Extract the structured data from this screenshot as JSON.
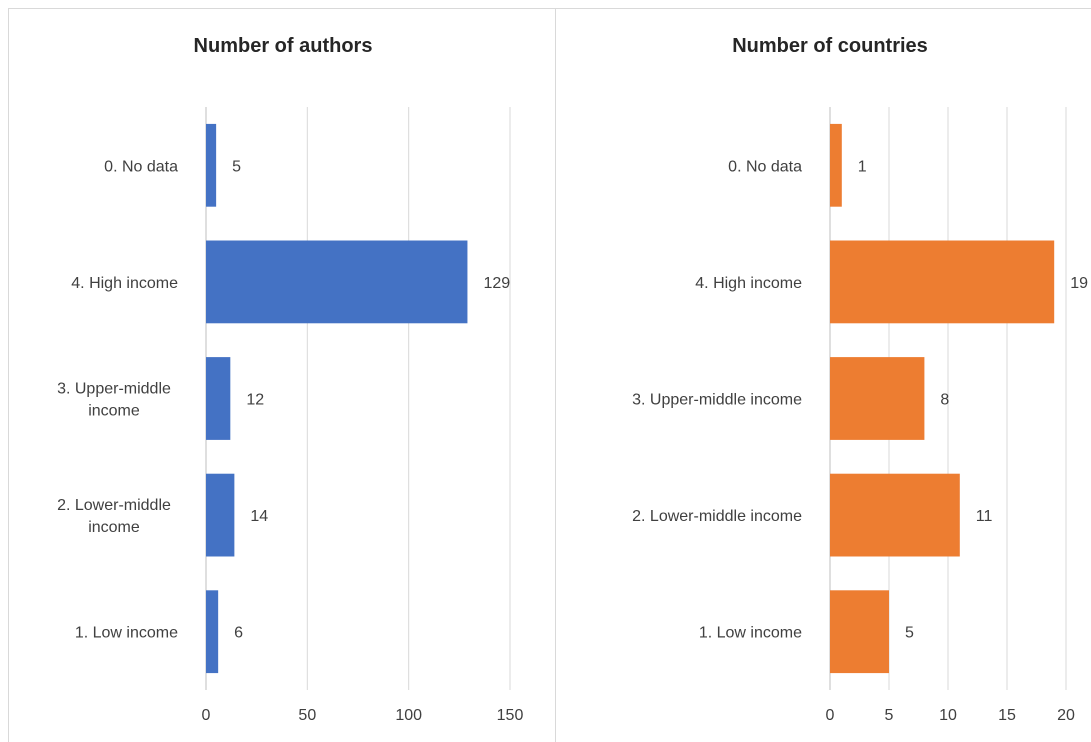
{
  "chart_data": [
    {
      "type": "bar",
      "orientation": "horizontal",
      "title": "Number of authors",
      "categories": [
        "0. No data",
        "4. High income",
        "3. Upper-middle income",
        "2. Lower-middle income",
        "1. Low income"
      ],
      "category_lines": [
        [
          "0. No data"
        ],
        [
          "4. High income"
        ],
        [
          "3. Upper-middle",
          "income"
        ],
        [
          "2. Lower-middle",
          "income"
        ],
        [
          "1. Low income"
        ]
      ],
      "values": [
        5,
        129,
        12,
        14,
        6
      ],
      "xlim": [
        0,
        150
      ],
      "xticks": [
        0,
        50,
        100,
        150
      ],
      "color": "#4472C4",
      "grid": true,
      "legend": "none"
    },
    {
      "type": "bar",
      "orientation": "horizontal",
      "title": "Number of countries",
      "categories": [
        "0. No data",
        "4. High income",
        "3. Upper-middle income",
        "2. Lower-middle income",
        "1. Low income"
      ],
      "category_lines": [
        [
          "0. No data"
        ],
        [
          "4. High income"
        ],
        [
          "3. Upper-middle income"
        ],
        [
          "2. Lower-middle income"
        ],
        [
          "1. Low income"
        ]
      ],
      "values": [
        1,
        19,
        8,
        11,
        5
      ],
      "xlim": [
        0,
        20
      ],
      "xticks": [
        0,
        5,
        10,
        15,
        20
      ],
      "color": "#ED7D31",
      "grid": true,
      "legend": "none"
    }
  ]
}
